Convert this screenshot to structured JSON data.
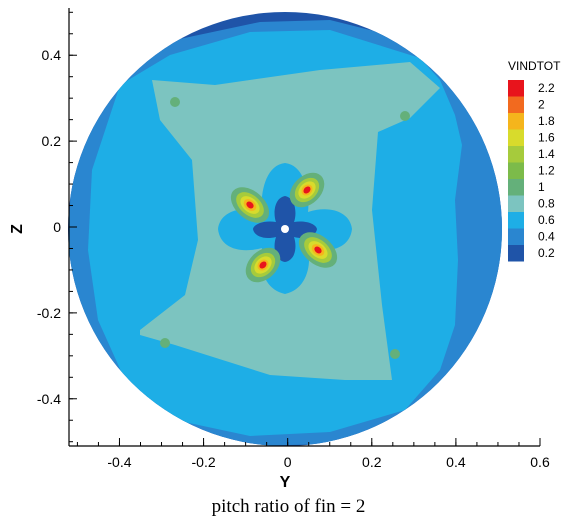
{
  "chart_data": {
    "type": "contour",
    "variable": "VINDTOT",
    "xlabel": "Y",
    "ylabel": "Z",
    "xlim": [
      -0.52,
      0.6
    ],
    "ylim": [
      -0.51,
      0.51
    ],
    "x_ticks": [
      "-0.4",
      "-0.2",
      "0",
      "0.2",
      "0.4",
      "0.6"
    ],
    "x_tick_values": [
      -0.4,
      -0.2,
      0,
      0.2,
      0.4,
      0.6
    ],
    "y_ticks": [
      "0.4",
      "0.2",
      "0",
      "-0.2",
      "-0.4"
    ],
    "y_tick_values": [
      0.4,
      0.2,
      0,
      -0.2,
      -0.4
    ],
    "domain": {
      "shape": "circle",
      "center": [
        0,
        0
      ],
      "radius": 0.5
    },
    "legend": {
      "title": "VINDTOT",
      "position": "right",
      "levels": [
        {
          "value": "2.2",
          "color": "#e8141c"
        },
        {
          "value": "2",
          "color": "#f26a1f"
        },
        {
          "value": "1.8",
          "color": "#f5b51c"
        },
        {
          "value": "1.6",
          "color": "#d8db2c"
        },
        {
          "value": "1.4",
          "color": "#a6cb3c"
        },
        {
          "value": "1.2",
          "color": "#7cbb4a"
        },
        {
          "value": "1",
          "color": "#64b07a"
        },
        {
          "value": "0.8",
          "color": "#7cc4c0"
        },
        {
          "value": "0.6",
          "color": "#1eaee6"
        },
        {
          "value": "0.4",
          "color": "#2a86d0"
        },
        {
          "value": "0.2",
          "color": "#1f54a8"
        }
      ]
    },
    "features": [
      {
        "name": "central low region",
        "level": 0.2,
        "center": [
          0,
          0
        ]
      },
      {
        "name": "peak lobes",
        "level": 2.2,
        "centers": [
          [
            -0.08,
            0.05
          ],
          [
            0.05,
            0.08
          ],
          [
            0.08,
            -0.05
          ],
          [
            -0.05,
            -0.08
          ]
        ]
      }
    ],
    "caption": "pitch ratio of fin = 2"
  }
}
